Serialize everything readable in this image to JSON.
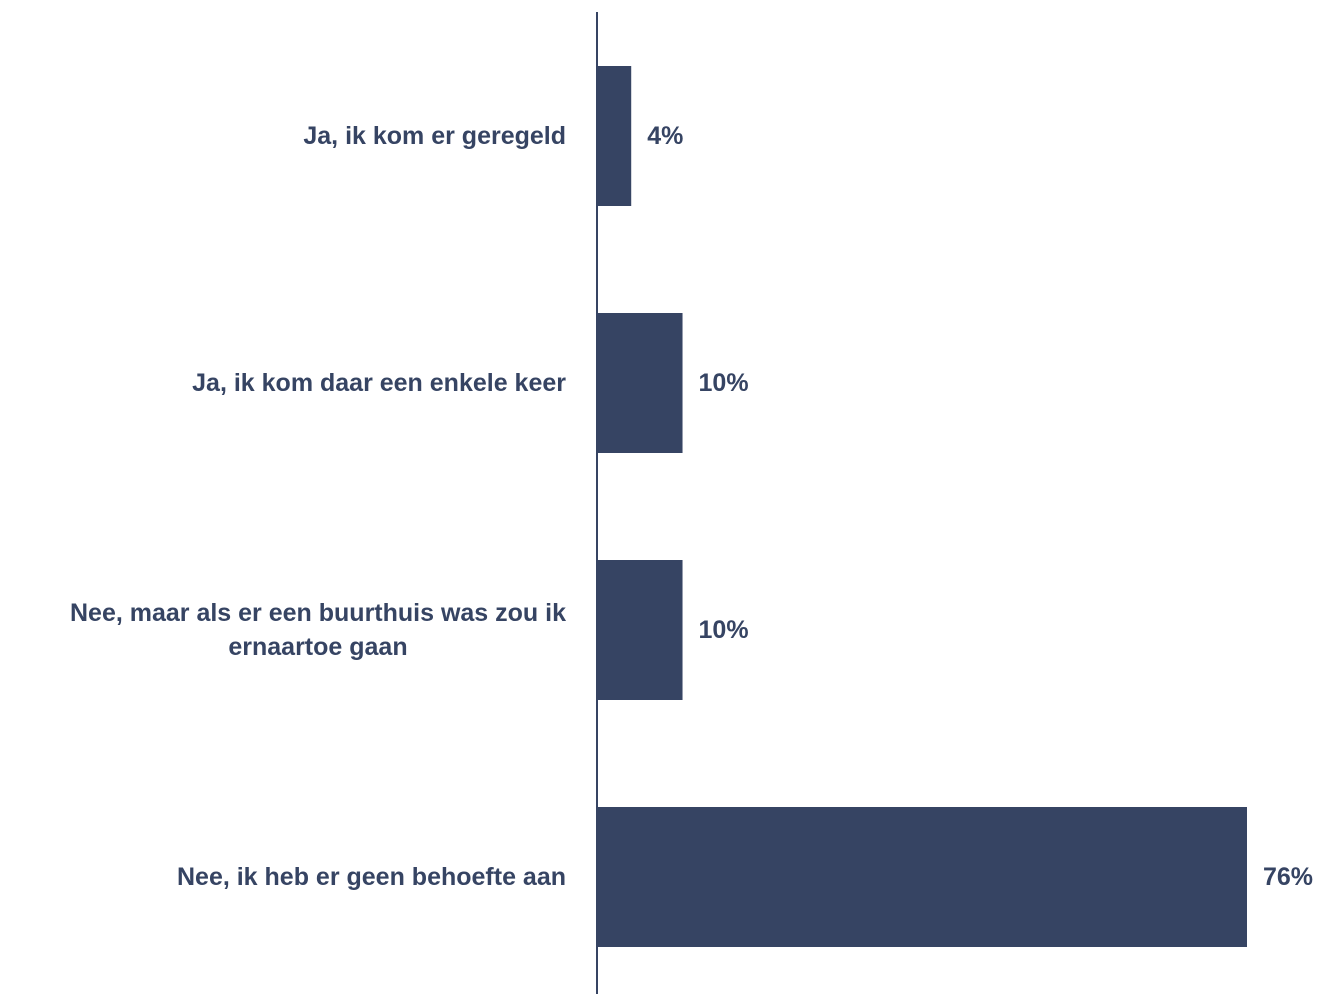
{
  "chart_data": {
    "type": "bar",
    "orientation": "horizontal",
    "categories": [
      "Ja, ik kom er geregeld",
      "Ja, ik kom daar een enkele keer",
      "Nee, maar als er een buurthuis was zou ik ernaartoe gaan",
      "Nee, ik heb er geen behoefte aan"
    ],
    "category_lines": [
      [
        "Ja, ik kom er geregeld"
      ],
      [
        "Ja, ik kom daar een enkele keer"
      ],
      [
        "Nee, maar als er een buurthuis was zou ik",
        "ernaartoe gaan"
      ],
      [
        "Nee, ik heb er geen behoefte aan"
      ]
    ],
    "values": [
      4,
      10,
      10,
      76
    ],
    "value_labels": [
      "4%",
      "10%",
      "10%",
      "76%"
    ],
    "title": "",
    "xlabel": "",
    "ylabel": "",
    "xlim": [
      0,
      76
    ],
    "grid": false,
    "legend": "none",
    "bar_color": "#364463",
    "text_color": "#364463",
    "axis_color": "#364463"
  }
}
